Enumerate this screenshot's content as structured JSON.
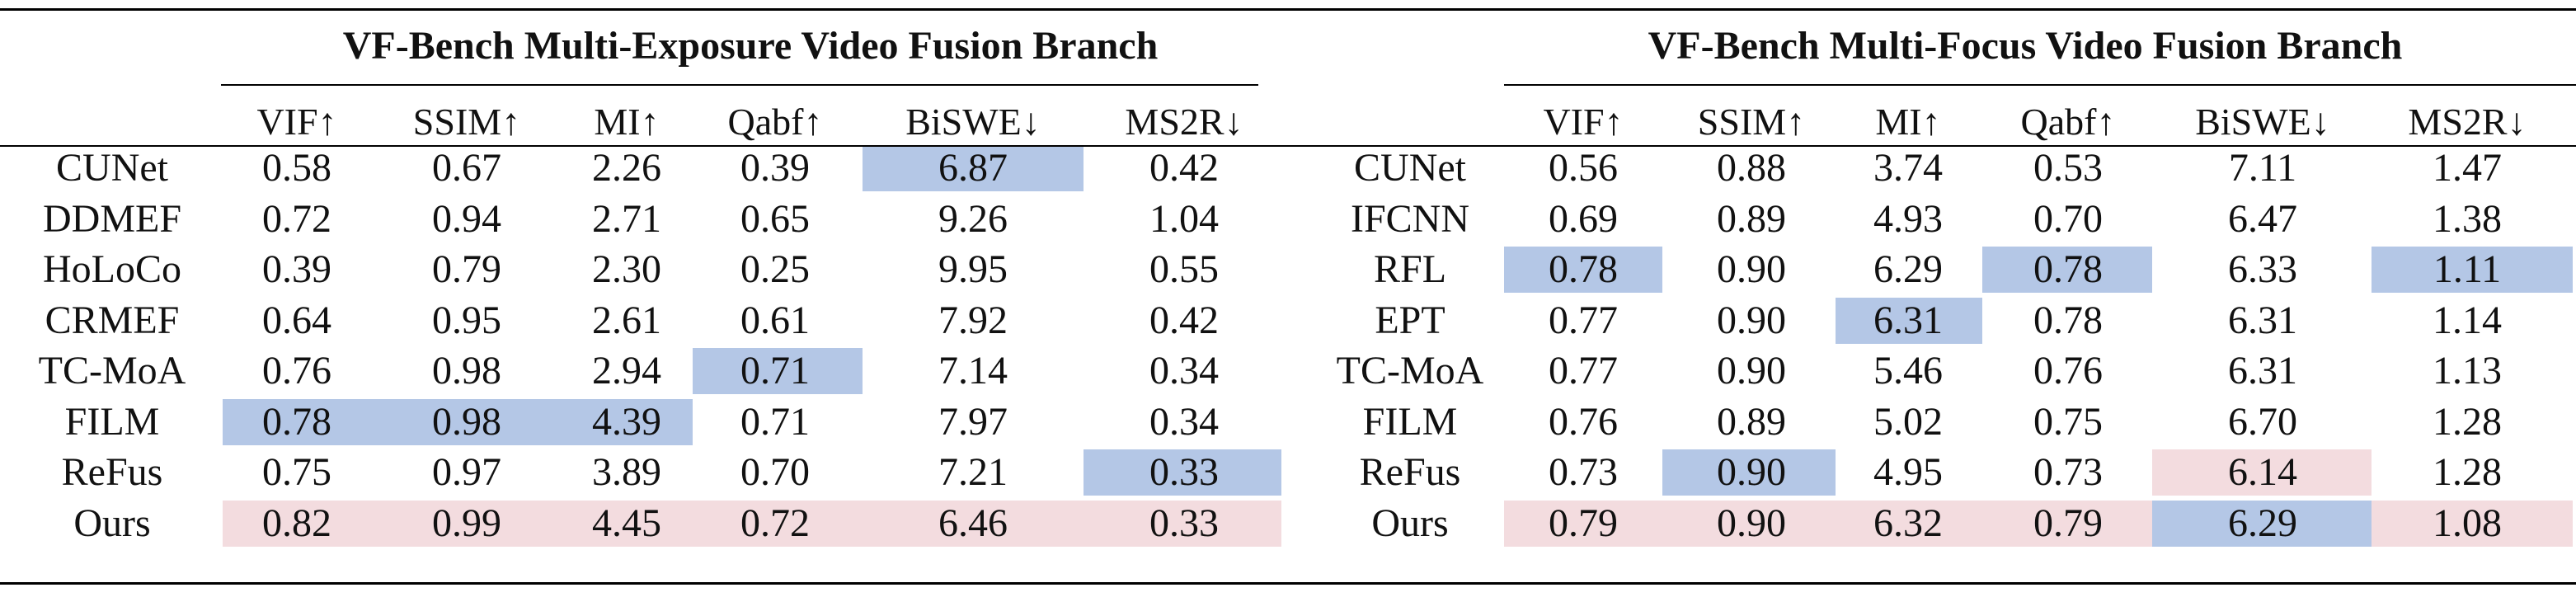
{
  "colors": {
    "best_highlight": "#b4c7e6",
    "second_highlight": "#f3dcdf",
    "rule": "#000000"
  },
  "exposure": {
    "title": "VF-Bench Multi-Exposure Video Fusion Branch",
    "columns": [
      "VIF↑",
      "SSIM↑",
      "MI↑",
      "Qabf↑",
      "BiSWE↓",
      "MS2R↓"
    ],
    "rows": [
      {
        "method": "CUNet",
        "values": [
          "0.58",
          "0.67",
          "2.26",
          "0.39",
          "6.87",
          "0.42"
        ]
      },
      {
        "method": "DDMEF",
        "values": [
          "0.72",
          "0.94",
          "2.71",
          "0.65",
          "9.26",
          "1.04"
        ]
      },
      {
        "method": "HoLoCo",
        "values": [
          "0.39",
          "0.79",
          "2.30",
          "0.25",
          "9.95",
          "0.55"
        ]
      },
      {
        "method": "CRMEF",
        "values": [
          "0.64",
          "0.95",
          "2.61",
          "0.61",
          "7.92",
          "0.42"
        ]
      },
      {
        "method": "TC-MoA",
        "values": [
          "0.76",
          "0.98",
          "2.94",
          "0.71",
          "7.14",
          "0.34"
        ]
      },
      {
        "method": "FILM",
        "values": [
          "0.78",
          "0.98",
          "4.39",
          "0.71",
          "7.97",
          "0.34"
        ]
      },
      {
        "method": "ReFus",
        "values": [
          "0.75",
          "0.97",
          "3.89",
          "0.70",
          "7.21",
          "0.33"
        ]
      },
      {
        "method": "Ours",
        "values": [
          "0.82",
          "0.99",
          "4.45",
          "0.72",
          "6.46",
          "0.33"
        ]
      }
    ],
    "blue_cells": [
      [
        0,
        4
      ],
      [
        4,
        3
      ],
      [
        5,
        0
      ],
      [
        5,
        1
      ],
      [
        5,
        2
      ],
      [
        6,
        5
      ]
    ],
    "pink_rows": [
      7
    ]
  },
  "focus": {
    "title": "VF-Bench Multi-Focus Video Fusion Branch",
    "columns": [
      "VIF↑",
      "SSIM↑",
      "MI↑",
      "Qabf↑",
      "BiSWE↓",
      "MS2R↓"
    ],
    "rows": [
      {
        "method": "CUNet",
        "values": [
          "0.56",
          "0.88",
          "3.74",
          "0.53",
          "7.11",
          "1.47"
        ]
      },
      {
        "method": "IFCNN",
        "values": [
          "0.69",
          "0.89",
          "4.93",
          "0.70",
          "6.47",
          "1.38"
        ]
      },
      {
        "method": "RFL",
        "values": [
          "0.78",
          "0.90",
          "6.29",
          "0.78",
          "6.33",
          "1.11"
        ]
      },
      {
        "method": "EPT",
        "values": [
          "0.77",
          "0.90",
          "6.31",
          "0.78",
          "6.31",
          "1.14"
        ]
      },
      {
        "method": "TC-MoA",
        "values": [
          "0.77",
          "0.90",
          "5.46",
          "0.76",
          "6.31",
          "1.13"
        ]
      },
      {
        "method": "FILM",
        "values": [
          "0.76",
          "0.89",
          "5.02",
          "0.75",
          "6.70",
          "1.28"
        ]
      },
      {
        "method": "ReFus",
        "values": [
          "0.73",
          "0.90",
          "4.95",
          "0.73",
          "6.14",
          "1.28"
        ]
      },
      {
        "method": "Ours",
        "values": [
          "0.79",
          "0.90",
          "6.32",
          "0.79",
          "6.29",
          "1.08"
        ]
      }
    ],
    "blue_cells": [
      [
        2,
        0
      ],
      [
        2,
        3
      ],
      [
        2,
        5
      ],
      [
        3,
        2
      ],
      [
        6,
        1
      ],
      [
        7,
        4
      ]
    ],
    "pink_cells": [
      [
        6,
        4
      ]
    ],
    "pink_rows": [
      7
    ],
    "pink_exclude": [
      [
        7,
        4
      ]
    ]
  }
}
